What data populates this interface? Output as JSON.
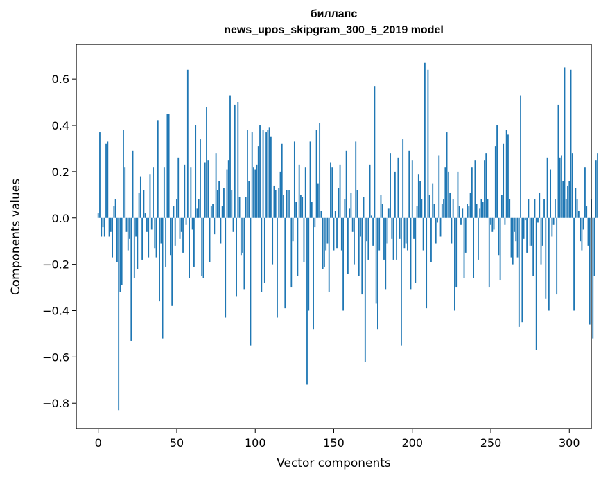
{
  "chart_data": {
    "type": "bar",
    "title": [
      "биллапс",
      "news_upos_skipgram_300_5_2019 model"
    ],
    "xlabel": "Vector components",
    "ylabel": "Components values",
    "xlim": [
      -14,
      314
    ],
    "ylim": [
      -0.91,
      0.75
    ],
    "xticks": [
      0,
      50,
      100,
      150,
      200,
      250,
      300
    ],
    "yticks": [
      -0.8,
      -0.6,
      -0.4,
      -0.2,
      0.0,
      0.2,
      0.4,
      0.6
    ],
    "ytick_labels": [
      "−0.8",
      "−0.6",
      "−0.4",
      "−0.2",
      "0.0",
      "0.2",
      "0.4",
      "0.6"
    ],
    "grid": false,
    "bar_color": "#1f77b4",
    "x_start": 0,
    "values": [
      0.02,
      0.37,
      -0.08,
      -0.04,
      -0.08,
      0.32,
      0.33,
      -0.08,
      -0.06,
      -0.17,
      0.05,
      0.08,
      -0.19,
      -0.83,
      -0.32,
      -0.29,
      0.38,
      0.22,
      -0.06,
      -0.14,
      -0.09,
      -0.53,
      0.29,
      -0.26,
      -0.08,
      -0.22,
      0.11,
      0.18,
      -0.18,
      0.12,
      0.02,
      -0.06,
      -0.17,
      0.19,
      -0.05,
      0.22,
      -0.13,
      -0.17,
      0.42,
      -0.36,
      -0.11,
      -0.52,
      0.22,
      -0.21,
      0.45,
      0.45,
      -0.16,
      -0.38,
      0.05,
      -0.12,
      0.08,
      0.26,
      -0.09,
      -0.06,
      -0.15,
      0.23,
      -0.03,
      0.64,
      -0.26,
      0.22,
      -0.05,
      -0.21,
      0.4,
      0.04,
      0.08,
      0.34,
      -0.25,
      -0.26,
      0.24,
      0.48,
      0.25,
      -0.19,
      0.05,
      0.06,
      -0.07,
      0.28,
      0.12,
      0.16,
      -0.11,
      0.05,
      0.13,
      -0.43,
      0.21,
      0.25,
      0.53,
      0.12,
      -0.06,
      0.49,
      -0.34,
      0.5,
      0.09,
      -0.16,
      -0.15,
      -0.31,
      0.09,
      0.38,
      0.16,
      -0.55,
      0.37,
      0.22,
      0.21,
      0.23,
      0.31,
      0.4,
      -0.32,
      0.38,
      -0.28,
      0.37,
      0.38,
      0.39,
      0.35,
      -0.2,
      0.14,
      0.12,
      -0.43,
      0.13,
      0.2,
      0.32,
      0.1,
      -0.39,
      0.12,
      0.12,
      0.12,
      -0.3,
      -0.1,
      0.33,
      0.07,
      -0.25,
      0.23,
      0.1,
      0.09,
      -0.19,
      0.22,
      -0.72,
      -0.4,
      0.33,
      0.07,
      -0.48,
      -0.04,
      0.38,
      0.15,
      0.41,
      0.03,
      -0.22,
      -0.21,
      -0.14,
      -0.11,
      -0.32,
      0.24,
      0.22,
      -0.14,
      0.03,
      -0.13,
      0.13,
      0.23,
      -0.14,
      -0.4,
      0.08,
      0.29,
      -0.24,
      0.04,
      0.11,
      -0.06,
      -0.2,
      0.33,
      0.12,
      -0.25,
      -0.08,
      -0.33,
      0.09,
      -0.62,
      -0.1,
      -0.18,
      0.23,
      0.01,
      -0.12,
      0.57,
      -0.37,
      -0.48,
      -0.14,
      0.1,
      0.06,
      -0.18,
      -0.31,
      -0.11,
      0.04,
      0.28,
      -0.09,
      -0.18,
      0.2,
      -0.18,
      0.26,
      -0.09,
      -0.55,
      0.34,
      -0.13,
      -0.11,
      -0.14,
      0.29,
      -0.31,
      0.25,
      -0.09,
      -0.28,
      0.05,
      0.19,
      0.16,
      0.08,
      -0.14,
      0.67,
      -0.39,
      0.64,
      0.1,
      -0.19,
      0.15,
      0.06,
      -0.11,
      -0.02,
      0.27,
      -0.08,
      0.06,
      0.08,
      0.22,
      0.37,
      0.2,
      0.11,
      -0.11,
      0.08,
      -0.4,
      -0.3,
      0.2,
      0.05,
      -0.03,
      0.04,
      -0.26,
      -0.15,
      0.06,
      0.05,
      0.11,
      0.22,
      -0.26,
      0.25,
      0.06,
      -0.18,
      0.04,
      0.08,
      0.07,
      0.25,
      0.28,
      0.08,
      -0.3,
      -0.03,
      -0.06,
      -0.05,
      0.31,
      0.4,
      -0.16,
      -0.27,
      0.1,
      0.32,
      -0.03,
      0.38,
      0.36,
      0.08,
      -0.17,
      -0.2,
      -0.06,
      -0.1,
      -0.17,
      -0.47,
      0.53,
      -0.45,
      -0.09,
      -0.01,
      -0.15,
      0.08,
      -0.12,
      -0.12,
      -0.25,
      0.08,
      -0.57,
      -0.02,
      0.11,
      -0.2,
      -0.12,
      0.08,
      -0.35,
      0.26,
      -0.4,
      0.21,
      -0.08,
      -0.03,
      0.08,
      -0.33,
      0.49,
      0.26,
      0.27,
      0.16,
      0.65,
      0.08,
      0.14,
      0.16,
      0.64,
      0.28,
      -0.4,
      0.13,
      0.08,
      0.03,
      -0.1,
      -0.14,
      -0.05,
      0.22,
      0.05,
      -0.12,
      -0.46,
      0.08,
      -0.52,
      -0.25,
      0.25,
      0.28
    ]
  }
}
